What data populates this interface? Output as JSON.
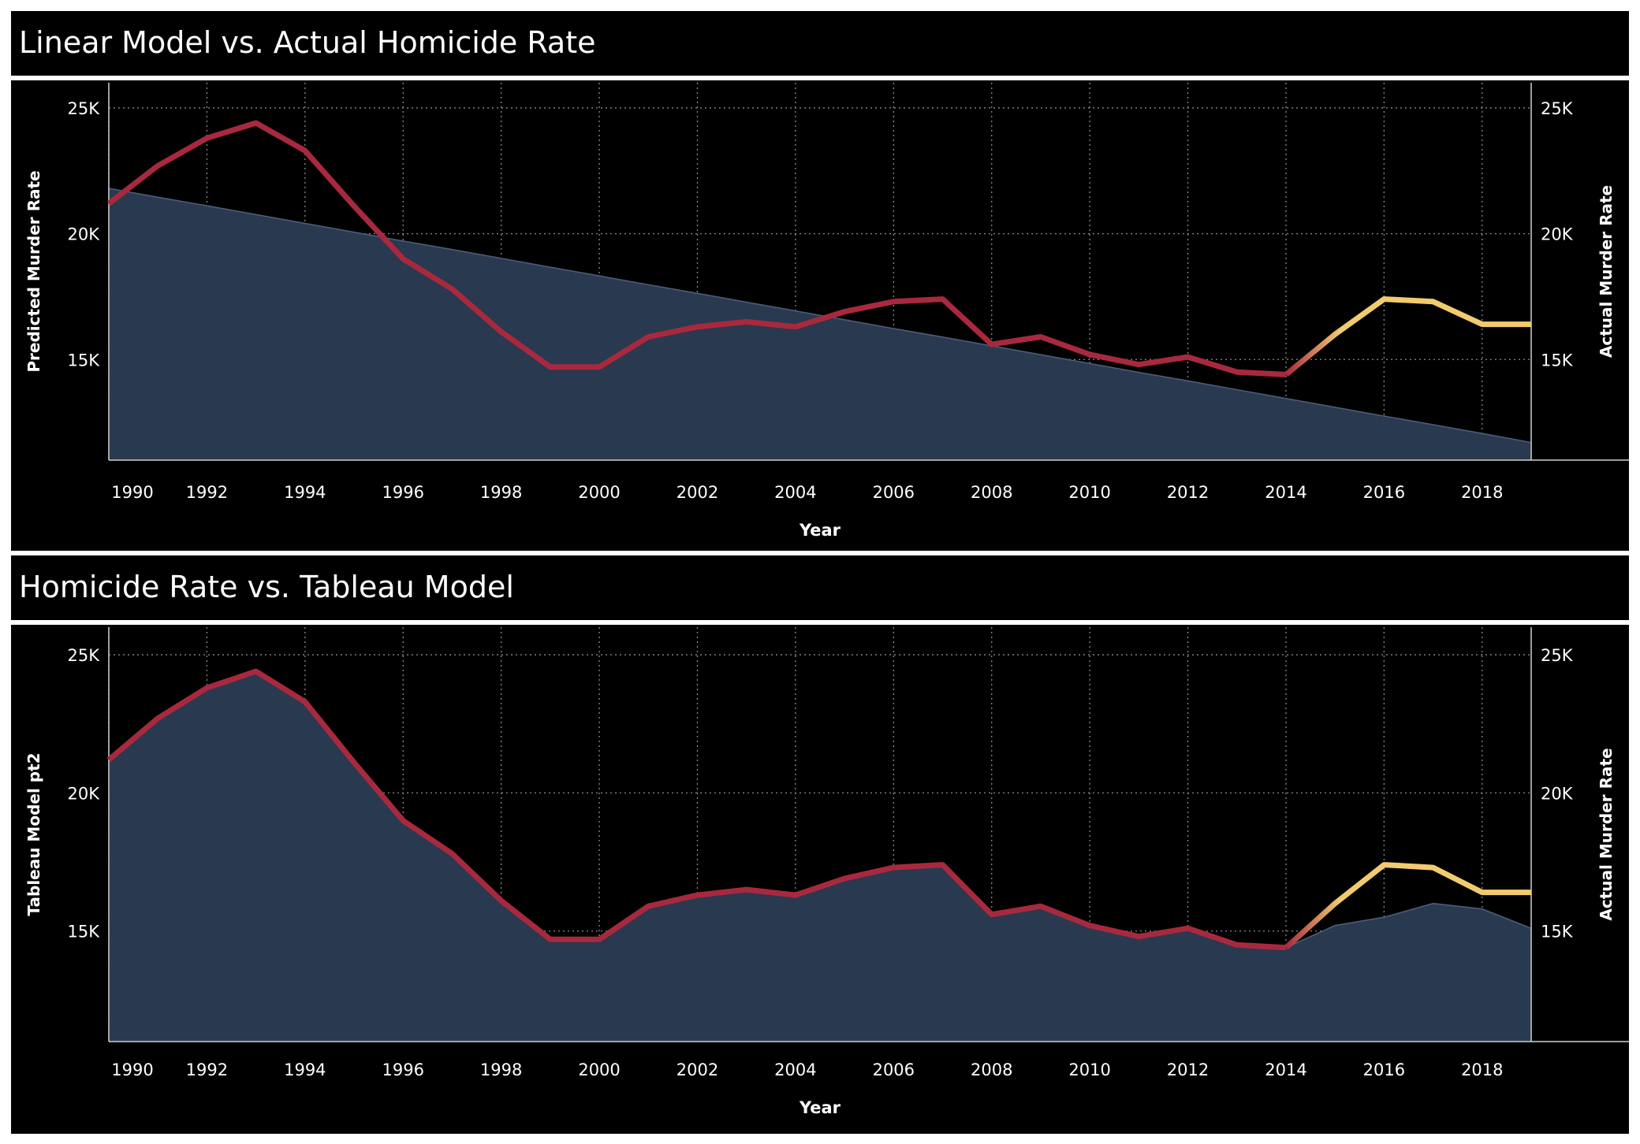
{
  "charts": [
    {
      "title": "Linear Model vs. Actual Homicide Rate",
      "xlabel": "Year",
      "y_left_label": "Predicted Murder Rate",
      "y_right_label": "Actual Murder Rate",
      "yticks": [
        "25K",
        "20K",
        "15K"
      ],
      "xticks": [
        "1990",
        "1992",
        "1994",
        "1996",
        "1998",
        "2000",
        "2002",
        "2004",
        "2006",
        "2008",
        "2010",
        "2012",
        "2014",
        "2016",
        "2018"
      ]
    },
    {
      "title": "Homicide Rate vs. Tableau Model",
      "xlabel": "Year",
      "y_left_label": "Tableau Model pt2",
      "y_right_label": "Actual Murder Rate",
      "yticks": [
        "25K",
        "20K",
        "15K"
      ],
      "xticks": [
        "1990",
        "1992",
        "1994",
        "1996",
        "1998",
        "2000",
        "2002",
        "2004",
        "2006",
        "2008",
        "2010",
        "2012",
        "2014",
        "2016",
        "2018"
      ]
    }
  ],
  "chart_data": [
    {
      "type": "area",
      "title": "Linear Model vs. Actual Homicide Rate",
      "xlabel": "Year",
      "ylabel": "Predicted Murder Rate",
      "y2label": "Actual Murder Rate",
      "x": [
        1990,
        1991,
        1992,
        1993,
        1994,
        1995,
        1996,
        1997,
        1998,
        1999,
        2000,
        2001,
        2002,
        2003,
        2004,
        2005,
        2006,
        2007,
        2008,
        2009,
        2010,
        2011,
        2012,
        2013,
        2014,
        2015,
        2016,
        2017,
        2018,
        2019
      ],
      "xlim": [
        1990,
        2019
      ],
      "ylim": [
        11000,
        26000
      ],
      "grid": true,
      "series": [
        {
          "name": "Predicted Murder Rate",
          "type": "area",
          "values": [
            21800,
            21450,
            21110,
            20760,
            20410,
            20060,
            19710,
            19370,
            19020,
            18670,
            18320,
            17970,
            17630,
            17280,
            16930,
            16580,
            16230,
            15890,
            15540,
            15190,
            14840,
            14490,
            14150,
            13800,
            13450,
            13100,
            12750,
            12410,
            12060,
            11700
          ],
          "color": "#2a3a51"
        },
        {
          "name": "Actual Murder Rate",
          "type": "line",
          "values": [
            21200,
            22700,
            23800,
            24400,
            23300,
            21100,
            19000,
            17800,
            16100,
            14700,
            14700,
            15900,
            16300,
            16500,
            16300,
            16900,
            17300,
            17400,
            15600,
            15900,
            15200,
            14800,
            15100,
            14500,
            14400,
            16000,
            17400,
            17300,
            16400,
            16400
          ],
          "color": "#a8293e",
          "highlight_from": 2014,
          "highlight_color": "#f1cb6e"
        }
      ]
    },
    {
      "type": "area",
      "title": "Homicide Rate vs. Tableau Model",
      "xlabel": "Year",
      "ylabel": "Tableau Model pt2",
      "y2label": "Actual Murder Rate",
      "x": [
        1990,
        1991,
        1992,
        1993,
        1994,
        1995,
        1996,
        1997,
        1998,
        1999,
        2000,
        2001,
        2002,
        2003,
        2004,
        2005,
        2006,
        2007,
        2008,
        2009,
        2010,
        2011,
        2012,
        2013,
        2014,
        2015,
        2016,
        2017,
        2018,
        2019
      ],
      "xlim": [
        1990,
        2019
      ],
      "ylim": [
        11000,
        26000
      ],
      "grid": true,
      "series": [
        {
          "name": "Tableau Model pt2",
          "type": "area",
          "values": [
            21200,
            22700,
            23800,
            24400,
            23300,
            21100,
            19000,
            17800,
            16100,
            14700,
            14700,
            15900,
            16300,
            16500,
            16300,
            16900,
            17300,
            17400,
            15600,
            15900,
            15200,
            14800,
            15100,
            14500,
            14400,
            15200,
            15500,
            16000,
            15800,
            15100
          ],
          "color": "#2a3a51"
        },
        {
          "name": "Actual Murder Rate",
          "type": "line",
          "values": [
            21200,
            22700,
            23800,
            24400,
            23300,
            21100,
            19000,
            17800,
            16100,
            14700,
            14700,
            15900,
            16300,
            16500,
            16300,
            16900,
            17300,
            17400,
            15600,
            15900,
            15200,
            14800,
            15100,
            14500,
            14400,
            16000,
            17400,
            17300,
            16400,
            16400
          ],
          "color": "#a8293e",
          "highlight_from": 2014,
          "highlight_color": "#f1cb6e"
        }
      ]
    }
  ]
}
